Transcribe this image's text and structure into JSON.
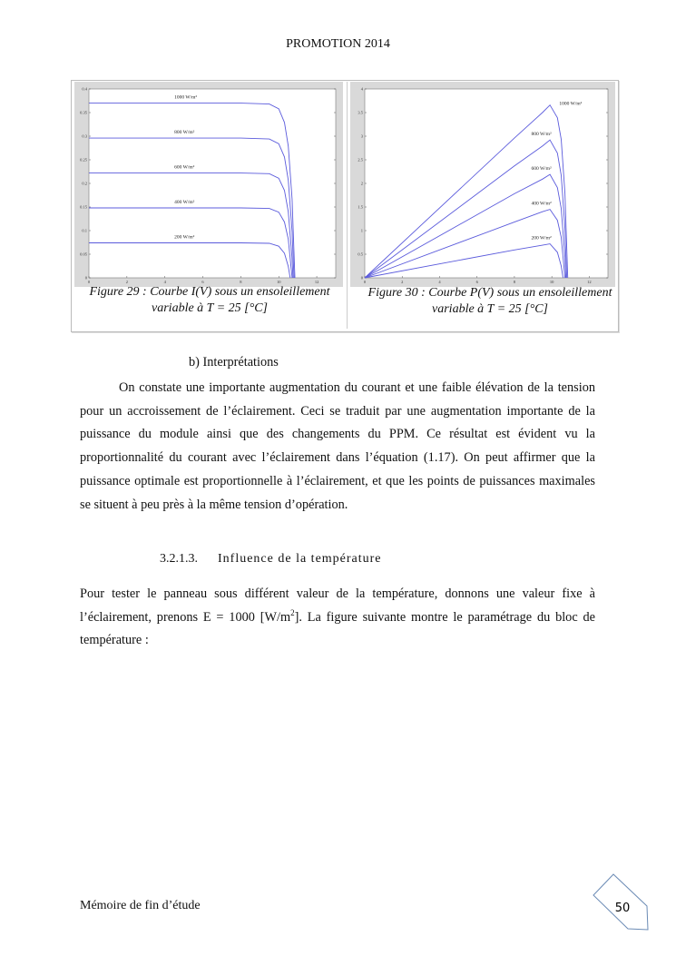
{
  "header": {
    "title": "PROMOTION 2014"
  },
  "figures": [
    {
      "caption": "Figure 29 : Courbe I(V) sous un ensoleillement variable à T = 25 [°C]"
    },
    {
      "caption": "Figure 30 : Courbe P(V) sous un ensoleillement variable à T = 25 [°C]"
    }
  ],
  "chart_data": [
    {
      "type": "line",
      "title": "",
      "xlabel": "",
      "ylabel": "",
      "xlim": [
        0,
        13
      ],
      "ylim": [
        0,
        0.4
      ],
      "xticks": [
        "0",
        "2",
        "4",
        "6",
        "8",
        "10",
        "12"
      ],
      "yticks": [
        "0",
        "0.05",
        "0.1",
        "0.15",
        "0.2",
        "0.25",
        "0.3",
        "0.35",
        "0.4"
      ],
      "grid": false,
      "line_color": "#5b5bdc",
      "series": [
        {
          "name": "1000 W/m²",
          "points": [
            [
              0,
              0.37
            ],
            [
              8,
              0.37
            ],
            [
              9.5,
              0.368
            ],
            [
              10,
              0.358
            ],
            [
              10.3,
              0.329
            ],
            [
              10.5,
              0.279
            ],
            [
              10.7,
              0.167
            ],
            [
              10.85,
              0
            ]
          ]
        },
        {
          "name": "800 W/m²",
          "points": [
            [
              0,
              0.296
            ],
            [
              8,
              0.296
            ],
            [
              9.5,
              0.294
            ],
            [
              10,
              0.284
            ],
            [
              10.3,
              0.256
            ],
            [
              10.5,
              0.207
            ],
            [
              10.7,
              0.098
            ],
            [
              10.8,
              0
            ]
          ]
        },
        {
          "name": "600 W/m²",
          "points": [
            [
              0,
              0.222
            ],
            [
              8,
              0.222
            ],
            [
              9.5,
              0.2205
            ],
            [
              10,
              0.211
            ],
            [
              10.3,
              0.185
            ],
            [
              10.5,
              0.14
            ],
            [
              10.7,
              0.04
            ],
            [
              10.75,
              0
            ]
          ]
        },
        {
          "name": "400 W/m²",
          "points": [
            [
              0,
              0.148
            ],
            [
              8,
              0.148
            ],
            [
              9.5,
              0.147
            ],
            [
              10,
              0.139
            ],
            [
              10.3,
              0.118
            ],
            [
              10.5,
              0.082
            ],
            [
              10.7,
              0
            ]
          ]
        },
        {
          "name": "200 W/m²",
          "points": [
            [
              0,
              0.074
            ],
            [
              8,
              0.074
            ],
            [
              9.5,
              0.073
            ],
            [
              10,
              0.067
            ],
            [
              10.3,
              0.052
            ],
            [
              10.5,
              0.024
            ],
            [
              10.6,
              0
            ]
          ]
        }
      ]
    },
    {
      "type": "line",
      "title": "",
      "xlabel": "",
      "ylabel": "",
      "xlim": [
        0,
        13
      ],
      "ylim": [
        0,
        4
      ],
      "xticks": [
        "0",
        "2",
        "4",
        "6",
        "8",
        "10",
        "12"
      ],
      "yticks": [
        "0",
        "0.5",
        "1",
        "1.5",
        "2",
        "2.5",
        "3",
        "3.5",
        "4"
      ],
      "grid": false,
      "line_color": "#5b5bdc",
      "series": [
        {
          "name": "1000 W/m²",
          "points": [
            [
              0,
              0
            ],
            [
              8,
              2.96
            ],
            [
              9.5,
              3.5
            ],
            [
              9.9,
              3.66
            ],
            [
              10.3,
              3.39
            ],
            [
              10.5,
              2.93
            ],
            [
              10.7,
              1.79
            ],
            [
              10.85,
              0
            ]
          ]
        },
        {
          "name": "800 W/m²",
          "points": [
            [
              0,
              0
            ],
            [
              8,
              2.37
            ],
            [
              9.5,
              2.79
            ],
            [
              9.9,
              2.92
            ],
            [
              10.3,
              2.64
            ],
            [
              10.5,
              2.17
            ],
            [
              10.7,
              1.05
            ],
            [
              10.8,
              0
            ]
          ]
        },
        {
          "name": "600 W/m²",
          "points": [
            [
              0,
              0
            ],
            [
              8,
              1.78
            ],
            [
              9.5,
              2.09
            ],
            [
              9.9,
              2.19
            ],
            [
              10.3,
              1.91
            ],
            [
              10.5,
              1.47
            ],
            [
              10.7,
              0.43
            ],
            [
              10.75,
              0
            ]
          ]
        },
        {
          "name": "400 W/m²",
          "points": [
            [
              0,
              0
            ],
            [
              8,
              1.18
            ],
            [
              9.5,
              1.4
            ],
            [
              9.9,
              1.45
            ],
            [
              10.3,
              1.22
            ],
            [
              10.5,
              0.86
            ],
            [
              10.7,
              0
            ]
          ]
        },
        {
          "name": "200 W/m²",
          "points": [
            [
              0,
              0
            ],
            [
              8,
              0.59
            ],
            [
              9.5,
              0.69
            ],
            [
              9.9,
              0.72
            ],
            [
              10.3,
              0.54
            ],
            [
              10.5,
              0.25
            ],
            [
              10.6,
              0
            ]
          ]
        }
      ]
    }
  ],
  "body": {
    "subheading": "b) Interprétations",
    "paragraph1": "On constate une importante augmentation du courant et une faible élévation de la tension pour un accroissement de l’éclairement. Ceci se traduit par une augmentation importante de la puissance du module ainsi que des changements du PPM. Ce résultat est évident vu la proportionnalité du courant avec l’éclairement dans l’équation (1.17). On peut affirmer que la puissance optimale est proportionnelle à l’éclairement, et que les points de puissances maximales se situent à peu près à la même tension d’opération.",
    "section_number": "3.2.1.3.",
    "section_title": "Influence de la température",
    "paragraph2_a": "Pour tester le panneau sous différent valeur de la température, donnons une valeur fixe à l’éclairement, prenons E = 1000 [W/m",
    "paragraph2_sup": "2",
    "paragraph2_b": "]. La figure suivante montre le paramétrage du bloc de température :"
  },
  "footer": {
    "text": "Mémoire de fin d’étude",
    "page_number": "50"
  }
}
